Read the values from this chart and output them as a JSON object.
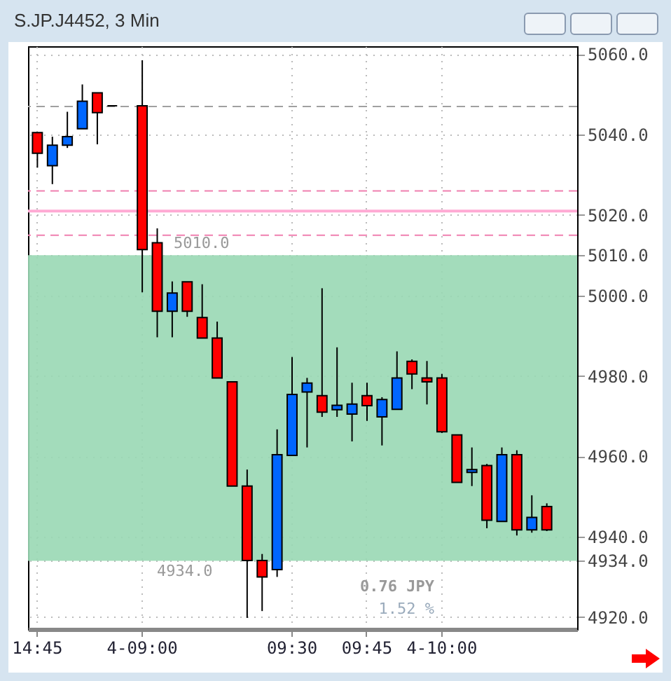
{
  "chart_data": {
    "type": "candlestick",
    "title": "S.JP.J4452, 3 Min",
    "categories": [
      "14:45",
      null,
      null,
      null,
      null,
      null,
      null,
      "4-09:00",
      null,
      null,
      null,
      null,
      null,
      null,
      null,
      null,
      null,
      "09:30",
      null,
      null,
      null,
      null,
      "09:45",
      null,
      null,
      null,
      null,
      "4-10:00",
      null,
      null,
      null,
      null,
      null,
      null,
      null
    ],
    "ohlc": [
      [
        5040.5,
        5040.5,
        5031.8,
        5035.4
      ],
      [
        5032.3,
        5039.5,
        5027.7,
        5037.4
      ],
      [
        5037.4,
        5045.7,
        5036.7,
        5039.5
      ],
      [
        5041.5,
        5052.5,
        5041.5,
        5048.3
      ],
      [
        5050.4,
        5050.4,
        5037.6,
        5045.5
      ],
      [
        5047.2,
        5047.2,
        5047.2,
        5047.2
      ],
      null,
      [
        5047.2,
        5058.5,
        5000.8,
        5011.4
      ],
      [
        5013.1,
        5016.7,
        4989.6,
        4996.1
      ],
      [
        4996.1,
        5003.5,
        4989.6,
        5000.6
      ],
      [
        5003.4,
        5003.4,
        4994.7,
        4996.1
      ],
      [
        4994.5,
        5002.8,
        4989.4,
        4989.4
      ],
      [
        4989.4,
        4993.5,
        4979.5,
        4979.5
      ],
      [
        4978.5,
        4978.5,
        4952.6,
        4952.6
      ],
      [
        4952.6,
        4956.7,
        4919.8,
        4934.1
      ],
      [
        4934.1,
        4935.7,
        4921.5,
        4930.0
      ],
      [
        4931.8,
        4966.7,
        4930.0,
        4960.4
      ],
      [
        4960.2,
        4984.7,
        4960.2,
        4975.4
      ],
      [
        4976.0,
        4979.5,
        4962.2,
        4978.2
      ],
      [
        4975.1,
        5001.8,
        4969.8,
        4971.0
      ],
      [
        4971.6,
        4987.1,
        4969.8,
        4972.7
      ],
      [
        4970.5,
        4978.3,
        4963.7,
        4973.0
      ],
      [
        4975.1,
        4978.3,
        4968.8,
        4972.6
      ],
      [
        4969.8,
        4974.7,
        4962.7,
        4974.1
      ],
      [
        4971.7,
        4986.1,
        4971.7,
        4979.5
      ],
      [
        4983.6,
        4984.1,
        4976.7,
        4980.5
      ],
      [
        4979.5,
        4983.7,
        4972.9,
        4978.5
      ],
      [
        4979.5,
        4980.5,
        4965.8,
        4966.1
      ],
      [
        4965.3,
        4965.3,
        4953.5,
        4953.5
      ],
      [
        4956.0,
        4962.2,
        4952.6,
        4956.7
      ],
      [
        4957.7,
        4958.1,
        4942.1,
        4944.1
      ],
      [
        4943.8,
        4962.2,
        4943.8,
        4960.4
      ],
      [
        4960.4,
        4961.5,
        4940.3,
        4941.7
      ],
      [
        4941.7,
        4950.3,
        4941.0,
        4944.8
      ],
      [
        4947.5,
        4948.3,
        4941.4,
        4941.7
      ]
    ],
    "colors": [
      "#ff0000",
      "#0066ff",
      "#0066ff",
      "#0066ff",
      "#ff0000",
      "#000000",
      null,
      "#ff0000",
      "#ff0000",
      "#0066ff",
      "#ff0000",
      "#ff0000",
      "#ff0000",
      "#ff0000",
      "#ff0000",
      "#ff0000",
      "#0066ff",
      "#0066ff",
      "#0066ff",
      "#ff0000",
      "#0066ff",
      "#0066ff",
      "#ff0000",
      "#0066ff",
      "#0066ff",
      "#ff0000",
      "#ff0000",
      "#ff0000",
      "#ff0000",
      "#0066ff",
      "#ff0000",
      "#0066ff",
      "#ff0000",
      "#0066ff",
      "#ff0000"
    ],
    "ylim": [
      4917,
      5062
    ],
    "yticks": [
      {
        "value": 4920,
        "label": "4920.0"
      },
      {
        "value": 4934,
        "label": "4934.0"
      },
      {
        "value": 4940,
        "label": "4940.0"
      },
      {
        "value": 4960,
        "label": "4960.0"
      },
      {
        "value": 4980,
        "label": "4980.0"
      },
      {
        "value": 5000,
        "label": "5000.0"
      },
      {
        "value": 5010,
        "label": "5010.0"
      },
      {
        "value": 5020,
        "label": "5020.0"
      },
      {
        "value": 5040,
        "label": "5040.0"
      },
      {
        "value": 5060,
        "label": "5060.0"
      }
    ],
    "grid": true,
    "ref_lines": [
      {
        "axis": "y",
        "value": 5047,
        "color": "#a0a0a0",
        "line_style": "dashed"
      },
      {
        "axis": "y",
        "value": 5026,
        "color": "#f080b0",
        "line_style": "dashed"
      },
      {
        "axis": "y",
        "value": 5015,
        "color": "#f080b0",
        "line_style": "dashed"
      },
      {
        "axis": "y",
        "value": 5021,
        "color": "#ffaad4",
        "line_style": "solid"
      }
    ],
    "bands": [
      {
        "axis": "y",
        "from": 4934,
        "to": 5010,
        "color": "#99d8b4"
      }
    ],
    "annotations": [
      {
        "text": "5010.0",
        "y": 5010
      },
      {
        "text": "4934.0",
        "y": 4934
      },
      "0.76 JPY",
      "1.52 %"
    ]
  }
}
